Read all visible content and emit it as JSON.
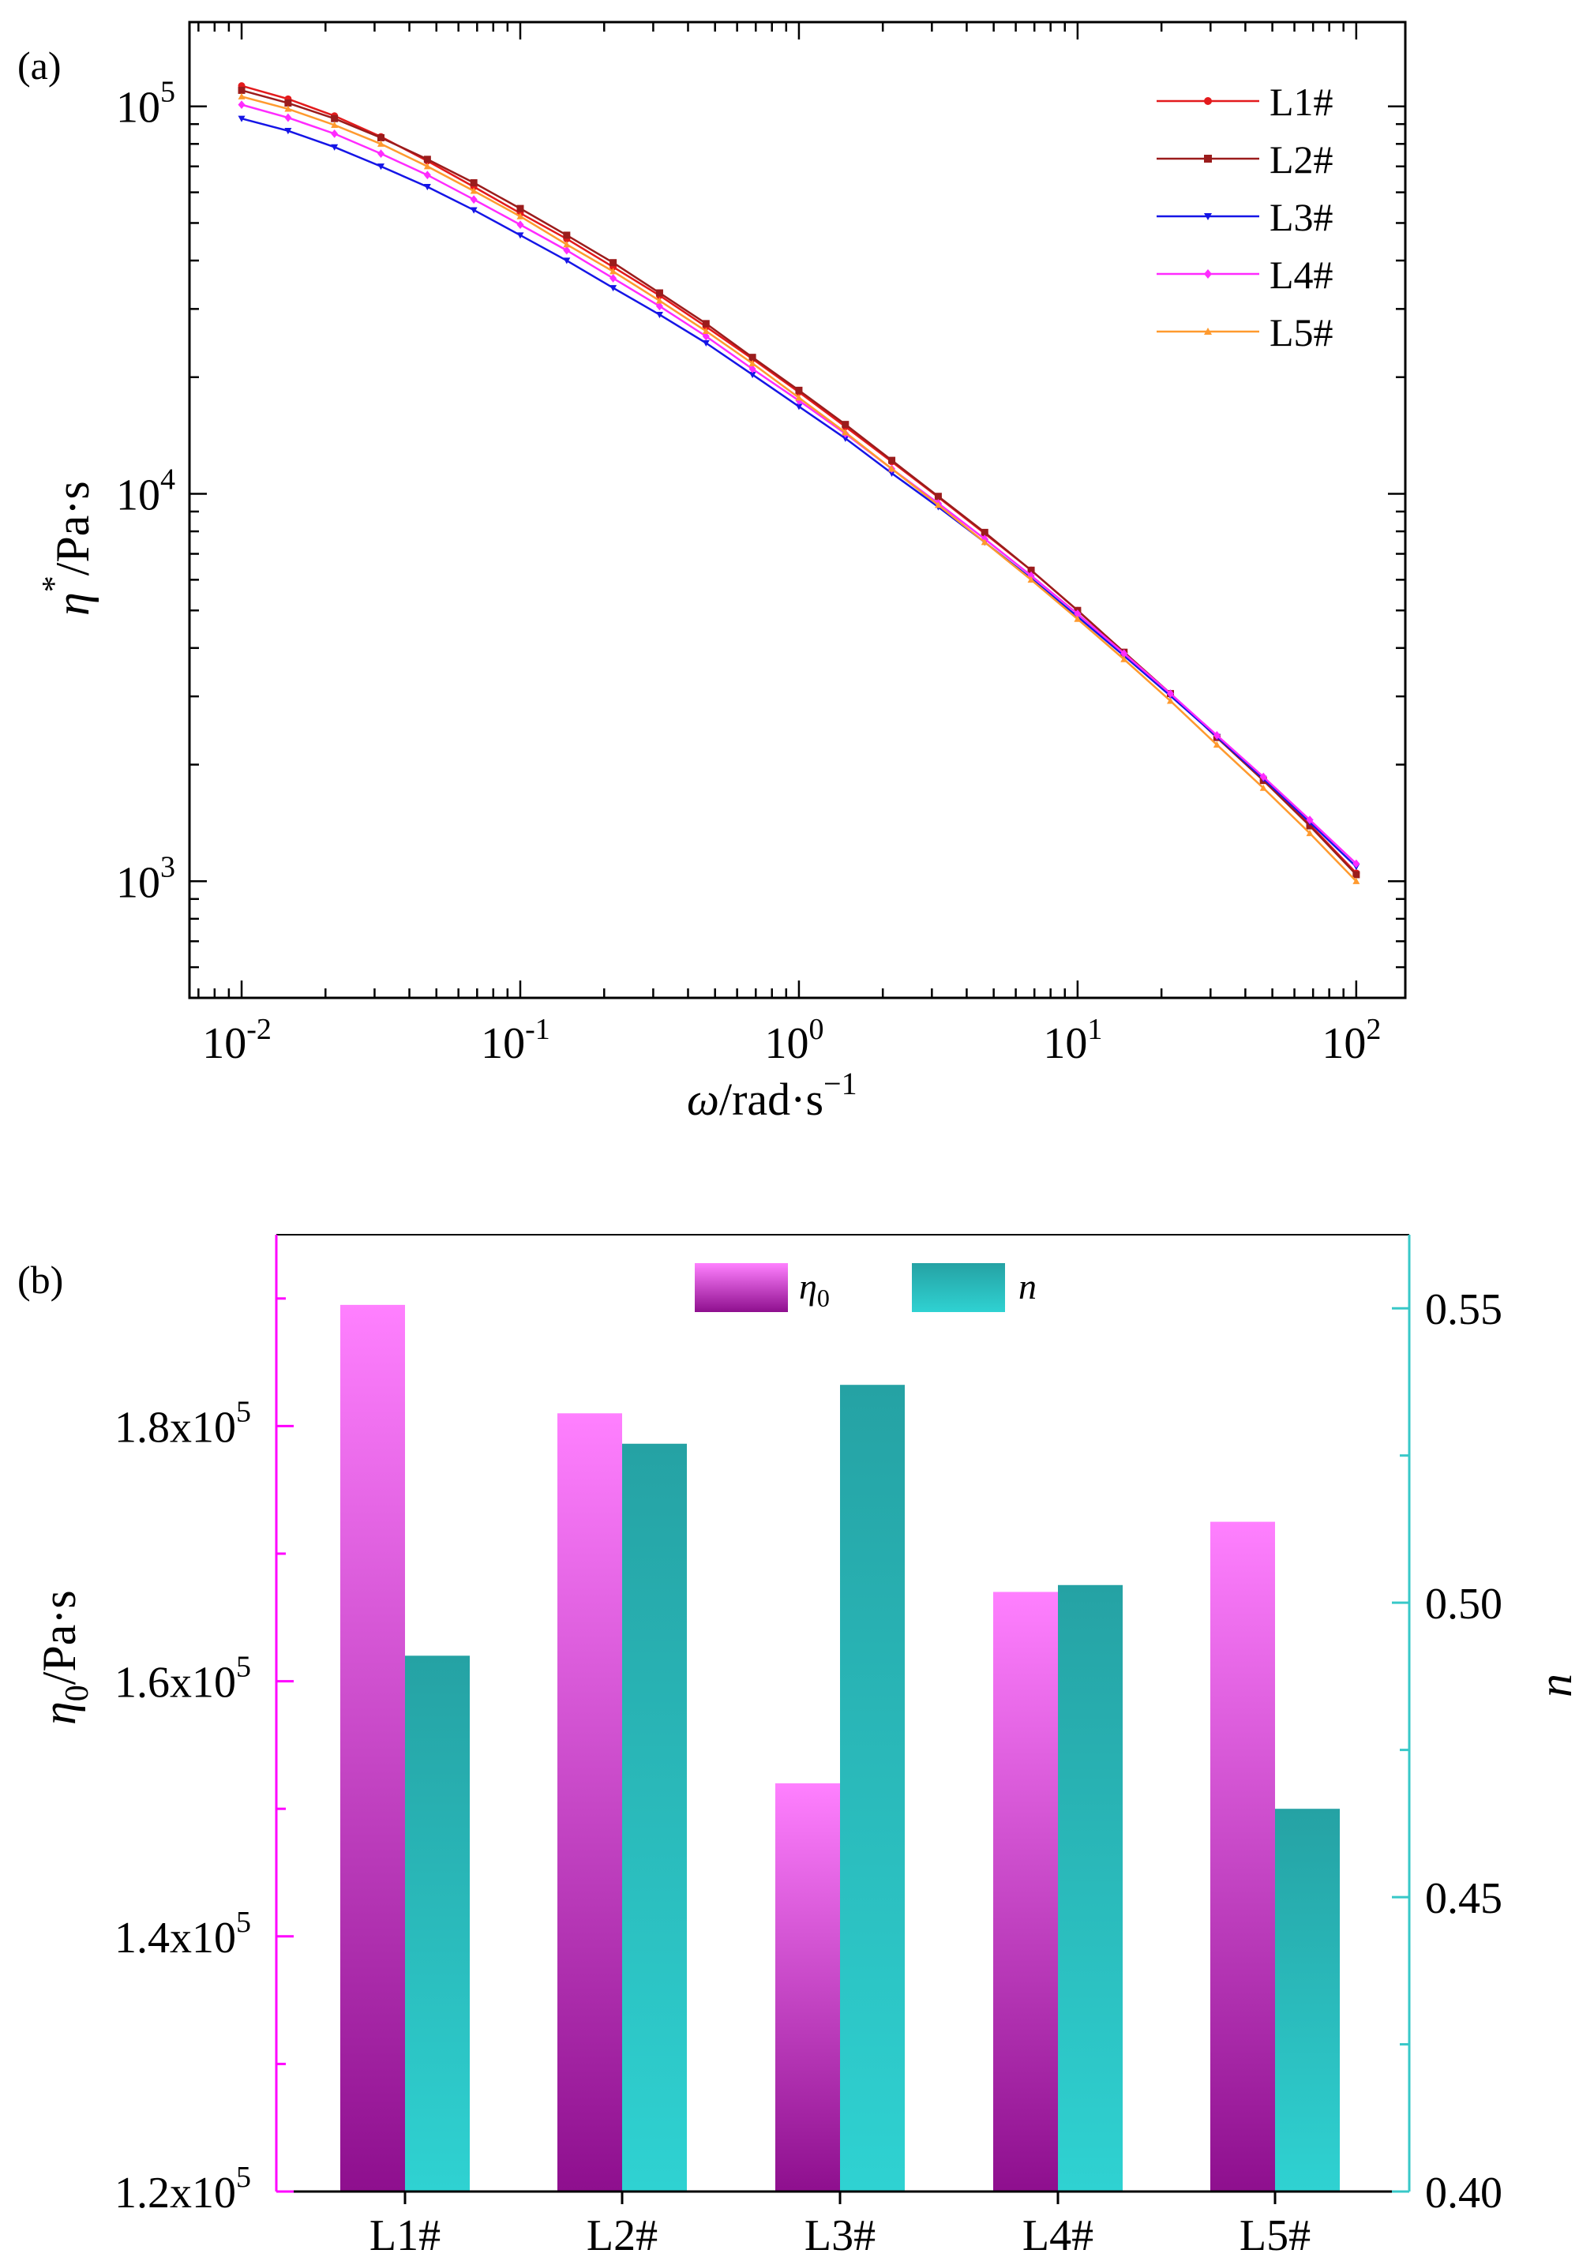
{
  "chart_data": [
    {
      "type": "line",
      "panel_label": "(a)",
      "xscale": "log",
      "yscale": "log",
      "xlim": [
        0.0065,
        150
      ],
      "ylim": [
        500,
        165000
      ],
      "x_ticks": [
        {
          "value": 0.01,
          "base": "10",
          "exp": "-2"
        },
        {
          "value": 0.1,
          "base": "10",
          "exp": "-1"
        },
        {
          "value": 1,
          "base": "10",
          "exp": "0"
        },
        {
          "value": 10,
          "base": "10",
          "exp": "1"
        },
        {
          "value": 100,
          "base": "10",
          "exp": "2"
        }
      ],
      "y_ticks": [
        {
          "value": 1000,
          "base": "10",
          "exp": "3"
        },
        {
          "value": 10000,
          "base": "10",
          "exp": "4"
        },
        {
          "value": 100000,
          "base": "10",
          "exp": "5"
        }
      ],
      "xlabel": {
        "sym": "ω",
        "unit": "/rad·s",
        "exp": "−1"
      },
      "ylabel": {
        "sym": "η",
        "sup": "*",
        "unit": "/Pa·s"
      },
      "legend_position": "top-right",
      "x": [
        0.01,
        0.01468,
        0.02154,
        0.03162,
        0.04642,
        0.06813,
        0.1,
        0.1468,
        0.2154,
        0.3162,
        0.4642,
        0.6813,
        1,
        1.468,
        2.154,
        3.162,
        4.642,
        6.813,
        10,
        14.68,
        21.54,
        31.62,
        46.42,
        68.13,
        100
      ],
      "series": [
        {
          "name": "L1#",
          "color": "#e31a1c",
          "marker": "circle",
          "values": [
            113000,
            104500,
            94500,
            83500,
            72300,
            62000,
            53000,
            45500,
            38500,
            32500,
            27000,
            22300,
            18300,
            14900,
            12100,
            9800,
            7900,
            6350,
            5000,
            3900,
            3050,
            2350,
            1820,
            1400,
            1050
          ]
        },
        {
          "name": "L2#",
          "color": "#9b1c1c",
          "marker": "square",
          "values": [
            110000,
            102000,
            93000,
            83000,
            73000,
            63500,
            54500,
            46500,
            39500,
            33000,
            27500,
            22500,
            18500,
            15100,
            12200,
            9850,
            7950,
            6350,
            5000,
            3900,
            3050,
            2350,
            1820,
            1390,
            1040
          ]
        },
        {
          "name": "L3#",
          "color": "#1515e6",
          "marker": "triangle-down",
          "values": [
            93000,
            86500,
            78500,
            70000,
            62000,
            54000,
            46500,
            40000,
            34000,
            29000,
            24500,
            20300,
            16800,
            13900,
            11300,
            9250,
            7500,
            6050,
            4820,
            3820,
            3010,
            2360,
            1840,
            1420,
            1090
          ]
        },
        {
          "name": "L4#",
          "color": "#ff2bff",
          "marker": "diamond",
          "values": [
            101000,
            93500,
            85000,
            75500,
            66500,
            57500,
            49500,
            42500,
            36000,
            30500,
            25500,
            21000,
            17400,
            14300,
            11600,
            9450,
            7650,
            6150,
            4900,
            3870,
            3050,
            2380,
            1860,
            1440,
            1110
          ]
        },
        {
          "name": "L5#",
          "color": "#ff9a2e",
          "marker": "triangle-up",
          "values": [
            106000,
            98500,
            89500,
            80000,
            70000,
            60500,
            52000,
            44000,
            37500,
            31500,
            26300,
            21700,
            17700,
            14400,
            11600,
            9350,
            7500,
            6000,
            4750,
            3740,
            2920,
            2250,
            1740,
            1330,
            1000
          ]
        }
      ]
    },
    {
      "type": "bar",
      "panel_label": "(b)",
      "categories": [
        "L1#",
        "L2#",
        "L3#",
        "L4#",
        "L5#"
      ],
      "series": [
        {
          "name_sym": "η",
          "name_sub": "0",
          "axis": "left",
          "color_top": "#ff80ff",
          "color_bottom": "#8e0f8e",
          "values": [
            189500,
            181000,
            152000,
            167000,
            172500
          ]
        },
        {
          "name_sym": "n",
          "name_sub": "",
          "axis": "right",
          "color_top": "#25a2a4",
          "color_bottom": "#2fd2d2",
          "values": [
            0.491,
            0.527,
            0.537,
            0.503,
            0.465
          ]
        }
      ],
      "left_ylim": [
        120000,
        195000
      ],
      "right_ylim": [
        0.4,
        0.5625
      ],
      "left_ticks": [
        {
          "value": 120000,
          "mant": "1.2x10",
          "exp": "5"
        },
        {
          "value": 140000,
          "mant": "1.4x10",
          "exp": "5"
        },
        {
          "value": 160000,
          "mant": "1.6x10",
          "exp": "5"
        },
        {
          "value": 180000,
          "mant": "1.8x10",
          "exp": "5"
        }
      ],
      "right_ticks": [
        {
          "value": 0.4,
          "label": "0.40"
        },
        {
          "value": 0.45,
          "label": "0.45"
        },
        {
          "value": 0.5,
          "label": "0.50"
        },
        {
          "value": 0.55,
          "label": "0.55"
        }
      ],
      "left_ylabel": {
        "sym": "η",
        "sub": "0",
        "unit": "/Pa·s"
      },
      "right_ylabel": "n",
      "left_axis_color": "#ff00ff",
      "right_axis_color": "#38c8c8",
      "legend_position": "top-center"
    }
  ]
}
